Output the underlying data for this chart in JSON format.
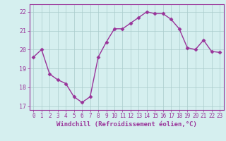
{
  "x": [
    0,
    1,
    2,
    3,
    4,
    5,
    6,
    7,
    8,
    9,
    10,
    11,
    12,
    13,
    14,
    15,
    16,
    17,
    18,
    19,
    20,
    21,
    22,
    23
  ],
  "y": [
    19.6,
    20.0,
    18.7,
    18.4,
    18.2,
    17.5,
    17.2,
    17.5,
    19.6,
    20.4,
    21.1,
    21.1,
    21.4,
    21.7,
    22.0,
    21.9,
    21.9,
    21.6,
    21.1,
    20.1,
    20.0,
    20.5,
    19.9,
    19.85
  ],
  "line_color": "#993399",
  "marker": "D",
  "marker_size": 2.5,
  "background_color": "#d5efef",
  "grid_color": "#aacccc",
  "xlabel": "Windchill (Refroidissement éolien,°C)",
  "xlim": [
    -0.5,
    23.5
  ],
  "ylim": [
    16.8,
    22.4
  ],
  "yticks": [
    17,
    18,
    19,
    20,
    21,
    22
  ],
  "xticks": [
    0,
    1,
    2,
    3,
    4,
    5,
    6,
    7,
    8,
    9,
    10,
    11,
    12,
    13,
    14,
    15,
    16,
    17,
    18,
    19,
    20,
    21,
    22,
    23
  ],
  "font_color": "#993399",
  "line_width": 1.0,
  "tick_fontsize": 5.5,
  "xlabel_fontsize": 6.5
}
